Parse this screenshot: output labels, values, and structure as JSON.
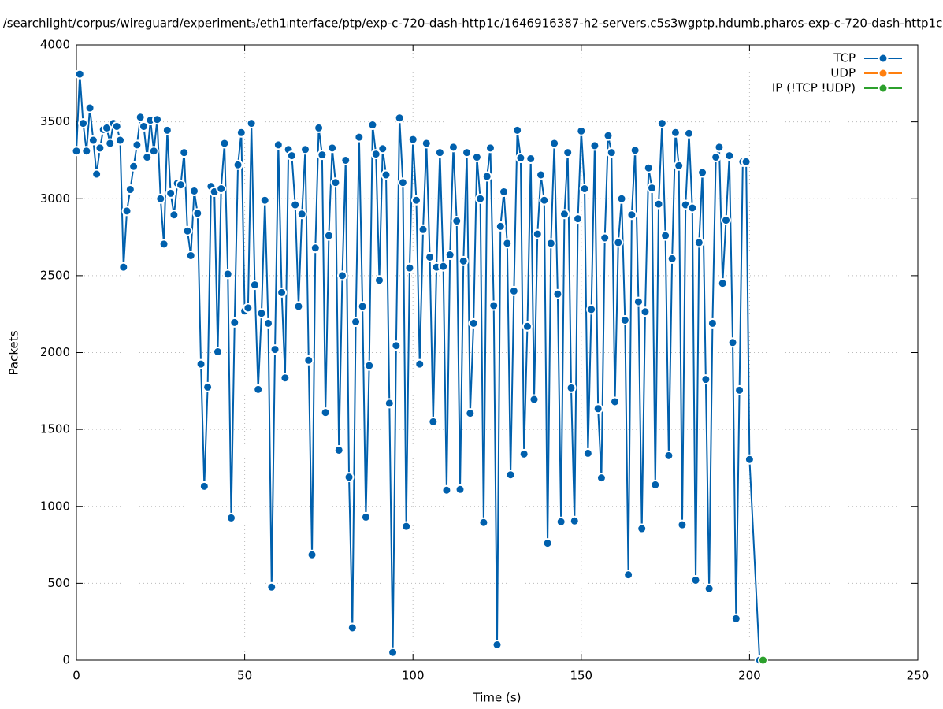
{
  "chart_data": {
    "type": "line",
    "title": "/searchlight/corpus/wireguard/experiment₃/eth1ᵢnterface/ptp/exp-c-720-dash-http1c/1646916387-h2-servers.c5s3wgptp.hdumb.pharos-exp-c-720-dash-http1c",
    "x_label": "Time (s)",
    "y_label": "Packets",
    "xlim": [
      0,
      250
    ],
    "xticks": [
      0,
      50,
      100,
      150,
      200,
      250
    ],
    "ylim": [
      0,
      4000
    ],
    "yticks": [
      0,
      500,
      1000,
      1500,
      2000,
      2500,
      3000,
      3500,
      4000
    ],
    "grid": true,
    "legend": "top-right",
    "series": [
      {
        "name": "TCP",
        "color": "#0060ad",
        "x": [
          0,
          1,
          2,
          3,
          4,
          5,
          6,
          7,
          8,
          9,
          10,
          11,
          12,
          13,
          14,
          15,
          16,
          17,
          18,
          19,
          20,
          21,
          22,
          23,
          24,
          25,
          26,
          27,
          28,
          29,
          30,
          31,
          32,
          33,
          34,
          35,
          36,
          37,
          38,
          39,
          40,
          41,
          42,
          43,
          44,
          45,
          46,
          47,
          48,
          49,
          50,
          51,
          52,
          53,
          54,
          55,
          56,
          57,
          58,
          59,
          60,
          61,
          62,
          63,
          64,
          65,
          66,
          67,
          68,
          69,
          70,
          71,
          72,
          73,
          74,
          75,
          76,
          77,
          78,
          79,
          80,
          81,
          82,
          83,
          84,
          85,
          86,
          87,
          88,
          89,
          90,
          91,
          92,
          93,
          94,
          95,
          96,
          97,
          98,
          99,
          100,
          101,
          102,
          103,
          104,
          105,
          106,
          107,
          108,
          109,
          110,
          111,
          112,
          113,
          114,
          115,
          116,
          117,
          118,
          119,
          120,
          121,
          122,
          123,
          124,
          125,
          126,
          127,
          128,
          129,
          130,
          131,
          132,
          133,
          134,
          135,
          136,
          137,
          138,
          139,
          140,
          141,
          142,
          143,
          144,
          145,
          146,
          147,
          148,
          149,
          150,
          151,
          152,
          153,
          154,
          155,
          156,
          157,
          158,
          159,
          160,
          161,
          162,
          163,
          164,
          165,
          166,
          167,
          168,
          169,
          170,
          171,
          172,
          173,
          174,
          175,
          176,
          177,
          178,
          179,
          180,
          181,
          182,
          183,
          184,
          185,
          186,
          187,
          188,
          189,
          190,
          191,
          192,
          193,
          194,
          195,
          196,
          197,
          198,
          199,
          200,
          203
        ],
        "values": [
          3310,
          3810,
          3490,
          3310,
          3590,
          3380,
          3160,
          3330,
          3450,
          3460,
          3360,
          3490,
          3470,
          3380,
          2555,
          2920,
          3060,
          3210,
          3350,
          3530,
          3470,
          3270,
          3510,
          3310,
          3515,
          3000,
          2705,
          3445,
          3035,
          2895,
          3100,
          3090,
          3300,
          2790,
          2630,
          3050,
          2905,
          1925,
          1130,
          1775,
          3080,
          3045,
          2005,
          3065,
          3360,
          2510,
          925,
          2195,
          3220,
          3430,
          2270,
          2290,
          3490,
          2440,
          1760,
          2255,
          2990,
          2190,
          475,
          2020,
          3350,
          2390,
          1835,
          3320,
          3280,
          2960,
          2300,
          2900,
          3320,
          1950,
          685,
          2680,
          3460,
          3285,
          1610,
          2760,
          3330,
          3105,
          1365,
          2500,
          3250,
          1190,
          210,
          2200,
          3400,
          2300,
          930,
          1915,
          3480,
          3290,
          2470,
          3325,
          3155,
          1670,
          50,
          2045,
          3525,
          3105,
          870,
          2550,
          3385,
          2990,
          1925,
          2800,
          3360,
          2620,
          1550,
          2555,
          3300,
          2560,
          1105,
          2635,
          3335,
          2855,
          1110,
          2595,
          3300,
          1605,
          2190,
          3270,
          3000,
          895,
          3145,
          3330,
          2305,
          100,
          2820,
          3045,
          2710,
          1205,
          2400,
          3445,
          3265,
          1340,
          2170,
          3260,
          1695,
          2770,
          3155,
          2990,
          760,
          2710,
          3360,
          2380,
          900,
          2900,
          3300,
          1770,
          905,
          2870,
          3440,
          3065,
          1345,
          2280,
          3345,
          1635,
          1185,
          2745,
          3410,
          3300,
          1680,
          2715,
          3000,
          2210,
          555,
          2895,
          3315,
          2330,
          855,
          2265,
          3200,
          3070,
          1140,
          2965,
          3490,
          2760,
          1330,
          2610,
          3430,
          3215,
          880,
          2960,
          3425,
          2940,
          520,
          2715,
          3170,
          1825,
          465,
          2190,
          3270,
          3335,
          2450,
          2860,
          3280,
          2065,
          270,
          1755,
          3240,
          3240,
          1305,
          0
        ]
      },
      {
        "name": "UDP",
        "color": "#ff7f0e",
        "x": [],
        "values": []
      },
      {
        "name": "IP (!TCP  !UDP)",
        "color": "#2ca02c",
        "x": [
          204
        ],
        "values": [
          0
        ]
      }
    ]
  }
}
